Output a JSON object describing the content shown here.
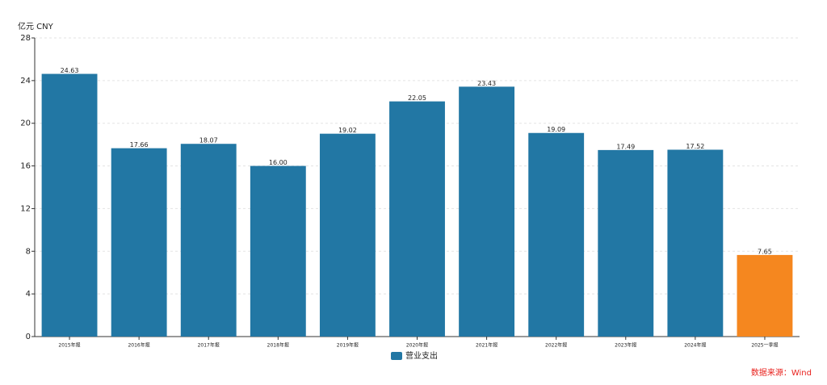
{
  "chart_data": {
    "type": "bar",
    "unit_label": "亿元 CNY",
    "source": "数据来源：Wind",
    "categories": [
      "2015年报",
      "2016年报",
      "2017年报",
      "2018年报",
      "2019年报",
      "2020年报",
      "2021年报",
      "2022年报",
      "2023年报",
      "2024年报",
      "2025一季报"
    ],
    "series": [
      {
        "name": "营业支出",
        "color": "#2277a4",
        "values": [
          24.63,
          17.66,
          18.07,
          16.0,
          19.02,
          22.05,
          23.43,
          19.09,
          17.49,
          17.52,
          7.65
        ],
        "value_labels": [
          "24.63",
          "17.66",
          "18.07",
          "16.00",
          "19.02",
          "22.05",
          "23.43",
          "19.09",
          "17.49",
          "17.52",
          "7.65"
        ],
        "bar_colors": [
          "#2277a4",
          "#2277a4",
          "#2277a4",
          "#2277a4",
          "#2277a4",
          "#2277a4",
          "#2277a4",
          "#2277a4",
          "#2277a4",
          "#2277a4",
          "#f5871f"
        ]
      }
    ],
    "ylim": [
      0,
      28
    ],
    "yticks": [
      0,
      4,
      8,
      12,
      16,
      20,
      24,
      28
    ],
    "grid": true
  }
}
